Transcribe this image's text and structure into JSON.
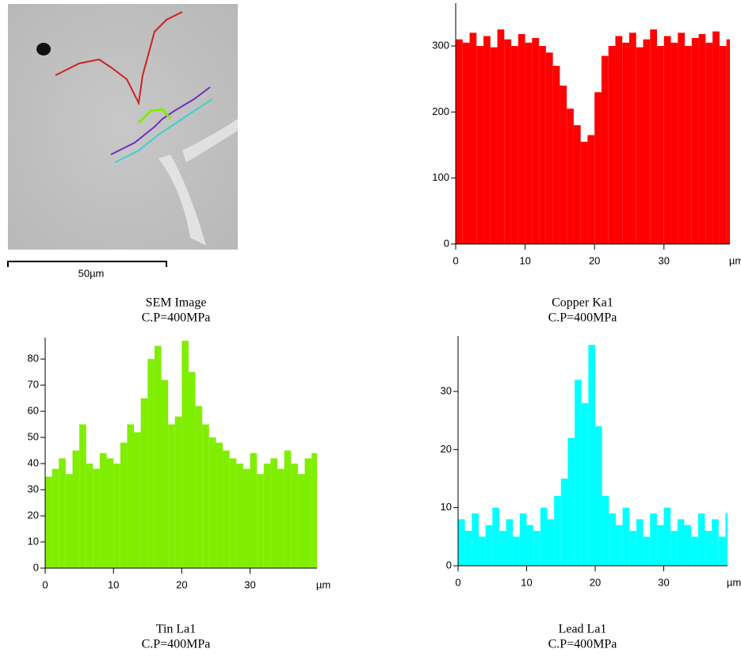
{
  "sem": {
    "scale_label": "50µm",
    "caption": "SEM Image",
    "condition": "C.P=400MPa"
  },
  "chart_data": [
    {
      "type": "bar",
      "title": "Copper Ka1",
      "subtitle": "C.P=400MPa",
      "xlabel": "µm",
      "color": "#ff0000",
      "x": [
        0,
        1,
        2,
        3,
        4,
        5,
        6,
        7,
        8,
        9,
        10,
        11,
        12,
        13,
        14,
        15,
        16,
        17,
        18,
        19,
        20,
        21,
        22,
        23,
        24,
        25,
        26,
        27,
        28,
        29,
        30,
        31,
        32,
        33,
        34,
        35,
        36,
        37,
        38,
        39
      ],
      "values": [
        310,
        305,
        320,
        300,
        315,
        298,
        325,
        310,
        300,
        318,
        305,
        312,
        300,
        290,
        270,
        240,
        205,
        180,
        155,
        165,
        230,
        285,
        300,
        315,
        305,
        320,
        298,
        310,
        325,
        300,
        315,
        305,
        320,
        300,
        312,
        318,
        305,
        322,
        300,
        310
      ],
      "xlim": [
        0,
        39.5
      ],
      "xticks": [
        0,
        10,
        20,
        30
      ],
      "ylim": [
        0,
        360
      ],
      "yticks": [
        0,
        100,
        200,
        300
      ],
      "grid": false
    },
    {
      "type": "bar",
      "title": "Tin La1",
      "subtitle": "C.P=400MPa",
      "xlabel": "µm",
      "color": "#80ee00",
      "x": [
        0,
        1,
        2,
        3,
        4,
        5,
        6,
        7,
        8,
        9,
        10,
        11,
        12,
        13,
        14,
        15,
        16,
        17,
        18,
        19,
        20,
        21,
        22,
        23,
        24,
        25,
        26,
        27,
        28,
        29,
        30,
        31,
        32,
        33,
        34,
        35,
        36,
        37,
        38,
        39
      ],
      "values": [
        35,
        38,
        42,
        36,
        45,
        55,
        40,
        38,
        44,
        42,
        40,
        48,
        55,
        52,
        65,
        80,
        85,
        72,
        55,
        58,
        87,
        75,
        62,
        55,
        50,
        48,
        45,
        42,
        40,
        38,
        44,
        36,
        40,
        42,
        38,
        45,
        40,
        36,
        42,
        44
      ],
      "xlim": [
        0,
        39.8
      ],
      "xticks": [
        0,
        10,
        20,
        30
      ],
      "ylim": [
        0,
        87
      ],
      "yticks": [
        0,
        10,
        20,
        30,
        40,
        50,
        60,
        70,
        80
      ],
      "grid": false
    },
    {
      "type": "bar",
      "title": "Lead La1",
      "subtitle": "C.P=400MPa",
      "xlabel": "µm",
      "color": "#00ffff",
      "x": [
        0,
        1,
        2,
        3,
        4,
        5,
        6,
        7,
        8,
        9,
        10,
        11,
        12,
        13,
        14,
        15,
        16,
        17,
        18,
        19,
        20,
        21,
        22,
        23,
        24,
        25,
        26,
        27,
        28,
        29,
        30,
        31,
        32,
        33,
        34,
        35,
        36,
        37,
        38,
        39
      ],
      "values": [
        8,
        6,
        9,
        5,
        7,
        10,
        6,
        8,
        5,
        9,
        7,
        6,
        10,
        8,
        12,
        15,
        22,
        32,
        28,
        38,
        24,
        12,
        9,
        7,
        10,
        6,
        8,
        5,
        9,
        7,
        10,
        6,
        8,
        7,
        5,
        9,
        6,
        8,
        5,
        9
      ],
      "xlim": [
        0,
        39.3
      ],
      "xticks": [
        0,
        10,
        20,
        30
      ],
      "ylim": [
        0,
        39
      ],
      "yticks": [
        0,
        10,
        20,
        30
      ],
      "grid": false
    }
  ]
}
